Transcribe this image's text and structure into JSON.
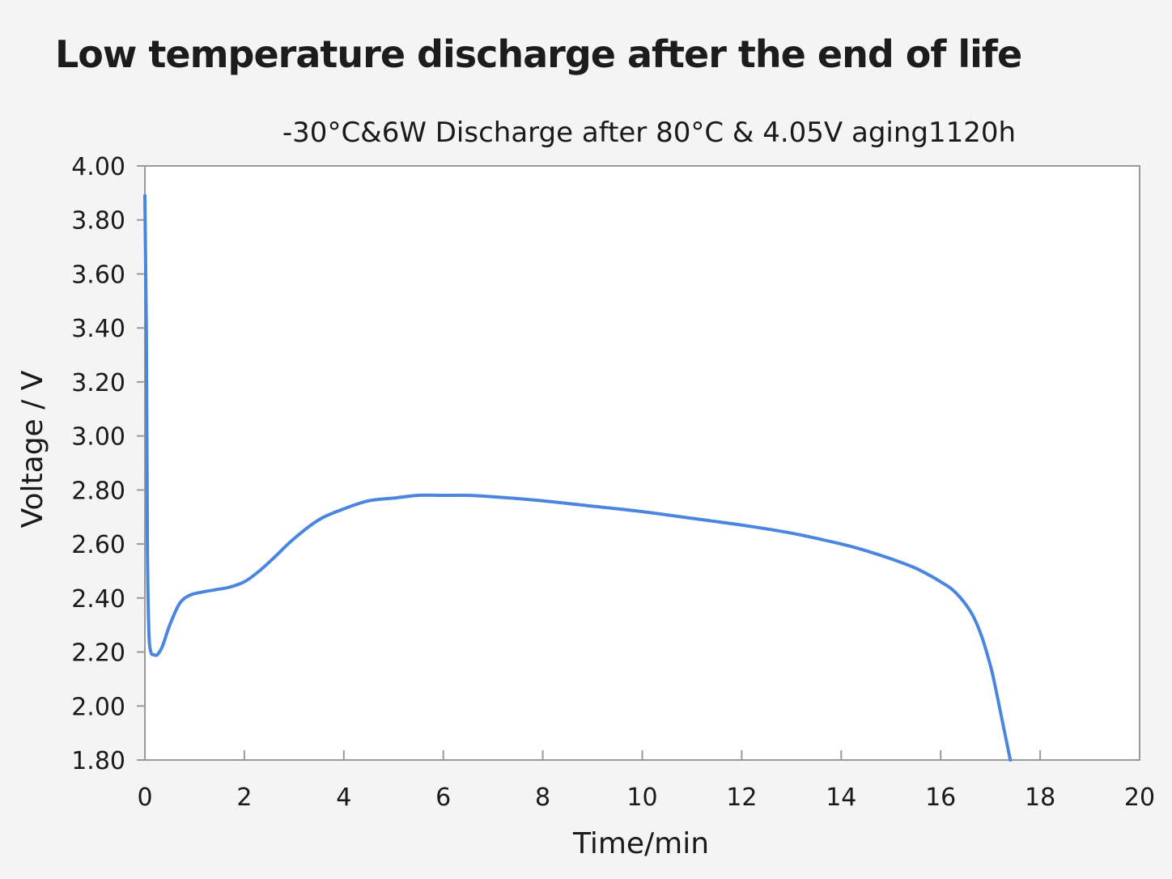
{
  "page": {
    "title": "Low temperature discharge after the end of life"
  },
  "chart_data": {
    "type": "line",
    "title": "-30°C&6W Discharge after 80°C & 4.05V aging1120h",
    "xlabel": "Time/min",
    "ylabel": "Voltage / V",
    "xlim": [
      0,
      20
    ],
    "ylim": [
      1.8,
      4.0
    ],
    "x_ticks": [
      "0",
      "2",
      "4",
      "6",
      "8",
      "10",
      "12",
      "14",
      "16",
      "18",
      "20"
    ],
    "y_ticks": [
      "4.00",
      "3.80",
      "3.60",
      "3.40",
      "3.20",
      "3.00",
      "2.80",
      "2.60",
      "2.40",
      "2.20",
      "2.00",
      "1.80"
    ],
    "grid": false,
    "line_color": "#4a86e0",
    "series": [
      {
        "x": [
          0.0,
          0.03,
          0.05,
          0.08,
          0.12,
          0.18,
          0.25,
          0.35,
          0.5,
          0.7,
          0.9,
          1.1,
          1.4,
          1.7,
          2.0,
          2.3,
          2.6,
          3.0,
          3.5,
          4.0,
          4.5,
          5.0,
          5.5,
          6.0,
          6.5,
          7.0,
          8.0,
          9.0,
          10.0,
          11.0,
          12.0,
          13.0,
          14.0,
          14.5,
          15.0,
          15.5,
          16.0,
          16.3,
          16.6,
          16.8,
          17.0,
          17.1,
          17.2,
          17.3,
          17.4
        ],
        "y": [
          3.89,
          3.4,
          2.6,
          2.28,
          2.2,
          2.19,
          2.19,
          2.22,
          2.3,
          2.38,
          2.41,
          2.42,
          2.43,
          2.44,
          2.46,
          2.5,
          2.55,
          2.62,
          2.69,
          2.73,
          2.76,
          2.77,
          2.78,
          2.78,
          2.78,
          2.775,
          2.76,
          2.74,
          2.72,
          2.695,
          2.67,
          2.64,
          2.6,
          2.575,
          2.545,
          2.51,
          2.46,
          2.42,
          2.35,
          2.27,
          2.15,
          2.07,
          1.98,
          1.89,
          1.8
        ]
      }
    ]
  }
}
